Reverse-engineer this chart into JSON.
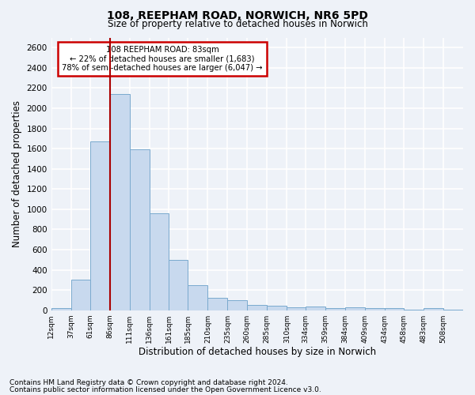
{
  "title": "108, REEPHAM ROAD, NORWICH, NR6 5PD",
  "subtitle": "Size of property relative to detached houses in Norwich",
  "xlabel": "Distribution of detached houses by size in Norwich",
  "ylabel": "Number of detached properties",
  "bar_color": "#c8d9ee",
  "bar_edge_color": "#7aaace",
  "vline_color": "#aa0000",
  "vline_x": 86,
  "categories": [
    "12sqm",
    "37sqm",
    "61sqm",
    "86sqm",
    "111sqm",
    "136sqm",
    "161sqm",
    "185sqm",
    "210sqm",
    "235sqm",
    "260sqm",
    "285sqm",
    "310sqm",
    "334sqm",
    "359sqm",
    "384sqm",
    "409sqm",
    "434sqm",
    "458sqm",
    "483sqm",
    "508sqm"
  ],
  "bin_edges": [
    12,
    37,
    61,
    86,
    111,
    136,
    161,
    185,
    210,
    235,
    260,
    285,
    310,
    334,
    359,
    384,
    409,
    434,
    458,
    483,
    508,
    533
  ],
  "values": [
    25,
    300,
    1670,
    2140,
    1590,
    960,
    500,
    250,
    120,
    100,
    50,
    45,
    30,
    40,
    20,
    30,
    20,
    25,
    5,
    25,
    5
  ],
  "annotation_text": "108 REEPHAM ROAD: 83sqm\n← 22% of detached houses are smaller (1,683)\n78% of semi-detached houses are larger (6,047) →",
  "annotation_box_color": "white",
  "annotation_box_edge": "#cc0000",
  "ylim": [
    0,
    2700
  ],
  "yticks": [
    0,
    200,
    400,
    600,
    800,
    1000,
    1200,
    1400,
    1600,
    1800,
    2000,
    2200,
    2400,
    2600
  ],
  "footer1": "Contains HM Land Registry data © Crown copyright and database right 2024.",
  "footer2": "Contains public sector information licensed under the Open Government Licence v3.0.",
  "background_color": "#eef2f8",
  "grid_color": "white"
}
